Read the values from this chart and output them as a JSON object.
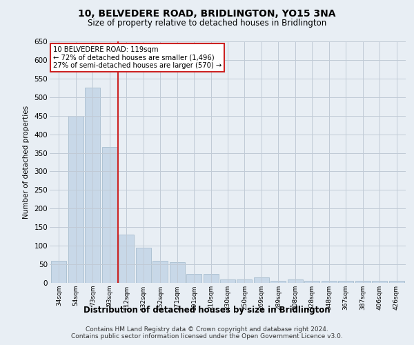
{
  "title": "10, BELVEDERE ROAD, BRIDLINGTON, YO15 3NA",
  "subtitle": "Size of property relative to detached houses in Bridlington",
  "xlabel": "Distribution of detached houses by size in Bridlington",
  "ylabel": "Number of detached properties",
  "footer_line1": "Contains HM Land Registry data © Crown copyright and database right 2024.",
  "footer_line2": "Contains public sector information licensed under the Open Government Licence v3.0.",
  "categories": [
    "34sqm",
    "54sqm",
    "73sqm",
    "93sqm",
    "112sqm",
    "132sqm",
    "152sqm",
    "171sqm",
    "191sqm",
    "210sqm",
    "230sqm",
    "250sqm",
    "269sqm",
    "289sqm",
    "308sqm",
    "328sqm",
    "348sqm",
    "367sqm",
    "387sqm",
    "406sqm",
    "426sqm"
  ],
  "values": [
    60,
    450,
    525,
    365,
    130,
    95,
    60,
    55,
    25,
    25,
    10,
    10,
    15,
    5,
    10,
    5,
    5,
    5,
    5,
    5,
    5
  ],
  "bar_color": "#c8d8e8",
  "bar_edge_color": "#a8bece",
  "vline_color": "#cc2222",
  "vline_position": 3.5,
  "annotation_line1": "10 BELVEDERE ROAD: 119sqm",
  "annotation_line2": "← 72% of detached houses are smaller (1,496)",
  "annotation_line3": "27% of semi-detached houses are larger (570) →",
  "annotation_box_color": "#ffffff",
  "annotation_box_edge_color": "#cc2222",
  "ylim": [
    0,
    650
  ],
  "yticks": [
    0,
    50,
    100,
    150,
    200,
    250,
    300,
    350,
    400,
    450,
    500,
    550,
    600,
    650
  ],
  "bg_color": "#e8eef4",
  "plot_bg_color": "#e8eef4",
  "grid_color": "#c0cad6"
}
